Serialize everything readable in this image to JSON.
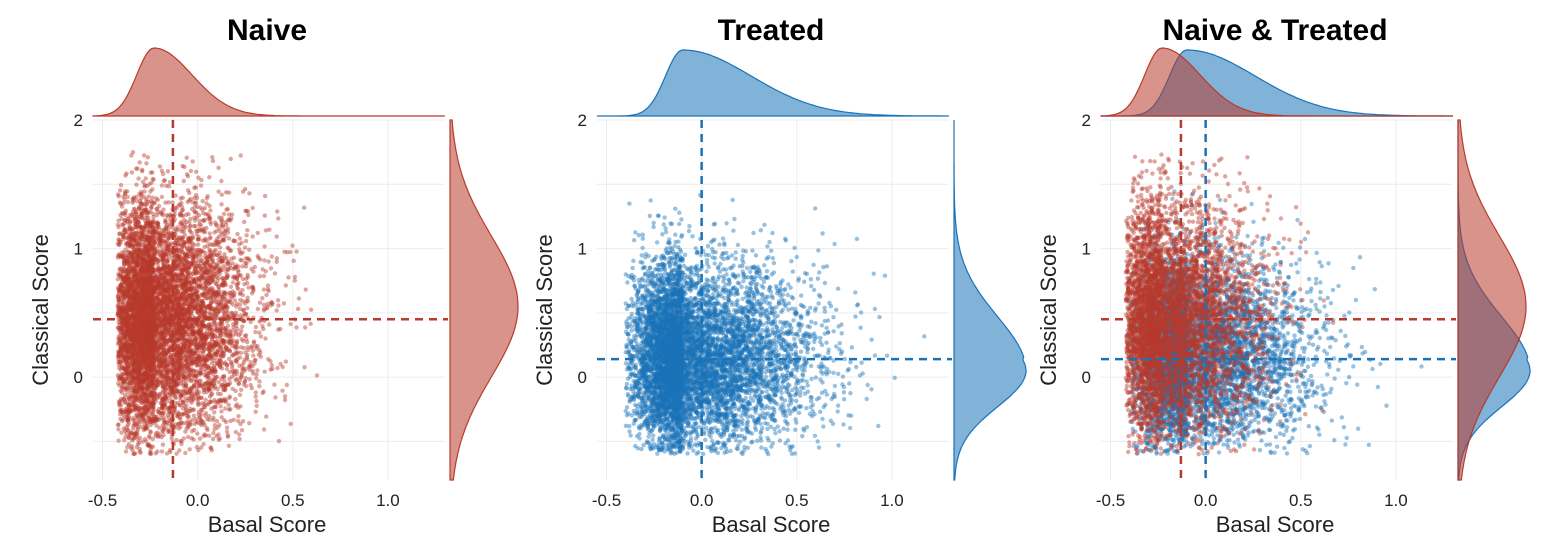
{
  "colors": {
    "naive": "#b83a2c",
    "treated": "#1a73b8"
  },
  "chart_data": [
    {
      "type": "scatter",
      "title": "Naive",
      "xlabel": "Basal Score",
      "ylabel": "Classical Score",
      "xlim": [
        -0.55,
        1.3
      ],
      "ylim": [
        -0.8,
        2.0
      ],
      "xticks": [
        "-0.5",
        "0.0",
        "0.5",
        "1.0"
      ],
      "yticks": [
        "0",
        "1",
        "2"
      ],
      "grid": true,
      "series": [
        {
          "color": "naive",
          "n_points": 7000,
          "x_center": -0.13,
          "y_center": 0.45,
          "x_range": [
            -0.42,
            1.0
          ],
          "y_range": [
            -0.6,
            1.75
          ],
          "median_x": -0.13,
          "median_y": 0.45
        }
      ],
      "marginals": [
        "top-density",
        "right-density"
      ]
    },
    {
      "type": "scatter",
      "title": "Treated",
      "xlabel": "Basal Score",
      "ylabel": "Classical Score",
      "xlim": [
        -0.55,
        1.3
      ],
      "ylim": [
        -0.8,
        2.0
      ],
      "xticks": [
        "-0.5",
        "0.0",
        "0.5",
        "1.0"
      ],
      "yticks": [
        "0",
        "1",
        "2"
      ],
      "grid": true,
      "series": [
        {
          "color": "treated",
          "n_points": 7000,
          "x_center": 0.0,
          "y_center": 0.14,
          "x_range": [
            -0.4,
            1.25
          ],
          "y_range": [
            -0.6,
            1.5
          ],
          "median_x": 0.0,
          "median_y": 0.14
        }
      ],
      "marginals": [
        "top-density",
        "right-density"
      ]
    },
    {
      "type": "scatter",
      "title": "Naive & Treated",
      "xlabel": "Basal Score",
      "ylabel": "Classical Score",
      "xlim": [
        -0.55,
        1.3
      ],
      "ylim": [
        -0.8,
        2.0
      ],
      "xticks": [
        "-0.5",
        "0.0",
        "0.5",
        "1.0"
      ],
      "yticks": [
        "0",
        "1",
        "2"
      ],
      "grid": true,
      "series": [
        {
          "color": "treated",
          "n_points": 5000,
          "x_center": 0.0,
          "y_center": 0.14,
          "x_range": [
            -0.4,
            1.25
          ],
          "y_range": [
            -0.6,
            1.5
          ],
          "median_x": 0.0,
          "median_y": 0.14
        },
        {
          "color": "naive",
          "n_points": 5000,
          "x_center": -0.13,
          "y_center": 0.45,
          "x_range": [
            -0.42,
            1.0
          ],
          "y_range": [
            -0.6,
            1.75
          ],
          "median_x": -0.13,
          "median_y": 0.45
        }
      ],
      "marginals": [
        "top-density",
        "right-density"
      ]
    }
  ]
}
